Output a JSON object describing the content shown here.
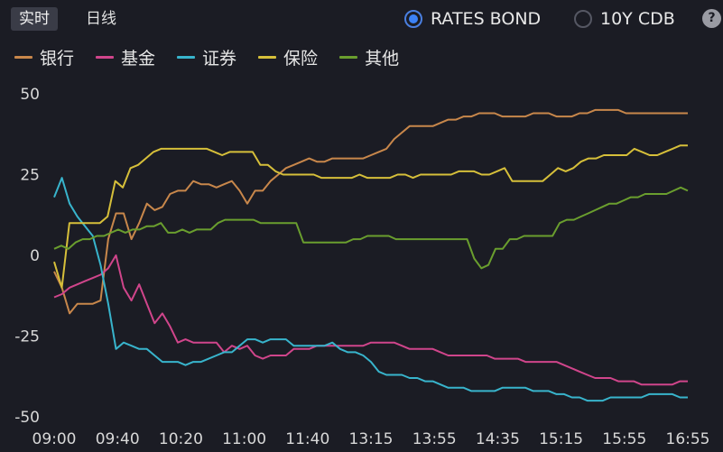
{
  "tabs": [
    {
      "label": "实时",
      "active": true
    },
    {
      "label": "日线",
      "active": false
    }
  ],
  "options": [
    {
      "label": "RATES BOND",
      "selected": true
    },
    {
      "label": "10Y CDB",
      "selected": false
    }
  ],
  "help_label": "?",
  "chart_data": {
    "type": "line",
    "title": "",
    "xlabel": "",
    "ylabel": "",
    "ylim": [
      -50,
      50
    ],
    "yticks": [
      50,
      25,
      0,
      -25,
      -50
    ],
    "xtick_labels": [
      "09:00",
      "09:40",
      "10:20",
      "11:00",
      "11:40",
      "13:15",
      "13:55",
      "14:35",
      "15:15",
      "15:55",
      "16:55"
    ],
    "grid": false,
    "legend": "top-left",
    "series": [
      {
        "name": "银行",
        "color": "#c8874b",
        "values": [
          -5,
          -10,
          -18,
          -15,
          -15,
          -15,
          -14,
          5,
          13,
          13,
          5,
          10,
          16,
          14,
          15,
          19,
          20,
          20,
          23,
          22,
          22,
          21,
          22,
          23,
          20,
          16,
          20,
          20,
          23,
          25,
          27,
          28,
          29,
          30,
          29,
          29,
          30,
          30,
          30,
          30,
          30,
          31,
          32,
          33,
          36,
          38,
          40,
          40,
          40,
          40,
          41,
          42,
          42,
          43,
          43,
          44,
          44,
          44,
          43,
          43,
          43,
          43,
          44,
          44,
          44,
          43,
          43,
          43,
          44,
          44,
          45,
          45,
          45,
          45,
          44,
          44,
          44,
          44,
          44,
          44,
          44,
          44,
          44
        ]
      },
      {
        "name": "基金",
        "color": "#d0458b",
        "values": [
          -13,
          -12,
          -10,
          -9,
          -8,
          -7,
          -6,
          -4,
          0,
          -10,
          -14,
          -9,
          -15,
          -21,
          -18,
          -22,
          -27,
          -26,
          -27,
          -27,
          -27,
          -27,
          -30,
          -28,
          -29,
          -28,
          -31,
          -32,
          -31,
          -31,
          -31,
          -29,
          -29,
          -29,
          -28,
          -28,
          -28,
          -28,
          -28,
          -28,
          -28,
          -27,
          -27,
          -27,
          -27,
          -28,
          -29,
          -29,
          -29,
          -29,
          -30,
          -31,
          -31,
          -31,
          -31,
          -31,
          -31,
          -32,
          -32,
          -32,
          -32,
          -33,
          -33,
          -33,
          -33,
          -33,
          -34,
          -35,
          -36,
          -37,
          -38,
          -38,
          -38,
          -39,
          -39,
          -39,
          -40,
          -40,
          -40,
          -40,
          -40,
          -39,
          -39
        ]
      },
      {
        "name": "证券",
        "color": "#38b4cc",
        "values": [
          18,
          24,
          16,
          12,
          9,
          6,
          -3,
          -15,
          -29,
          -27,
          -28,
          -29,
          -29,
          -31,
          -33,
          -33,
          -33,
          -34,
          -33,
          -33,
          -32,
          -31,
          -30,
          -30,
          -28,
          -26,
          -26,
          -27,
          -26,
          -26,
          -26,
          -28,
          -28,
          -28,
          -28,
          -28,
          -27,
          -29,
          -30,
          -30,
          -31,
          -33,
          -36,
          -37,
          -37,
          -37,
          -38,
          -38,
          -39,
          -39,
          -40,
          -41,
          -41,
          -41,
          -42,
          -42,
          -42,
          -42,
          -41,
          -41,
          -41,
          -41,
          -42,
          -42,
          -42,
          -43,
          -43,
          -44,
          -44,
          -45,
          -45,
          -45,
          -44,
          -44,
          -44,
          -44,
          -44,
          -43,
          -43,
          -43,
          -43,
          -44,
          -44
        ]
      },
      {
        "name": "保险",
        "color": "#d6bf3a",
        "values": [
          -2,
          -10,
          10,
          10,
          10,
          10,
          10,
          12,
          23,
          21,
          27,
          28,
          30,
          32,
          33,
          33,
          33,
          33,
          33,
          33,
          33,
          32,
          31,
          32,
          32,
          32,
          32,
          28,
          28,
          26,
          25,
          25,
          25,
          25,
          25,
          24,
          24,
          24,
          24,
          24,
          25,
          24,
          24,
          24,
          24,
          25,
          25,
          24,
          25,
          25,
          25,
          25,
          25,
          26,
          26,
          26,
          25,
          25,
          26,
          27,
          23,
          23,
          23,
          23,
          23,
          25,
          27,
          26,
          27,
          29,
          30,
          30,
          31,
          31,
          31,
          31,
          33,
          32,
          31,
          31,
          32,
          33,
          34,
          34
        ]
      },
      {
        "name": "其他",
        "color": "#6a9e2e",
        "values": [
          2,
          3,
          2,
          4,
          5,
          5,
          6,
          6,
          7,
          8,
          7,
          8,
          8,
          9,
          9,
          10,
          7,
          7,
          8,
          7,
          8,
          8,
          8,
          10,
          11,
          11,
          11,
          11,
          11,
          10,
          10,
          10,
          10,
          10,
          10,
          4,
          4,
          4,
          4,
          4,
          4,
          4,
          5,
          5,
          6,
          6,
          6,
          6,
          5,
          5,
          5,
          5,
          5,
          5,
          5,
          5,
          5,
          5,
          5,
          -1,
          -4,
          -3,
          2,
          2,
          5,
          5,
          6,
          6,
          6,
          6,
          6,
          10,
          11,
          11,
          12,
          13,
          14,
          15,
          16,
          16,
          17,
          18,
          18,
          19,
          19,
          19,
          19,
          20,
          21,
          20
        ]
      }
    ]
  }
}
